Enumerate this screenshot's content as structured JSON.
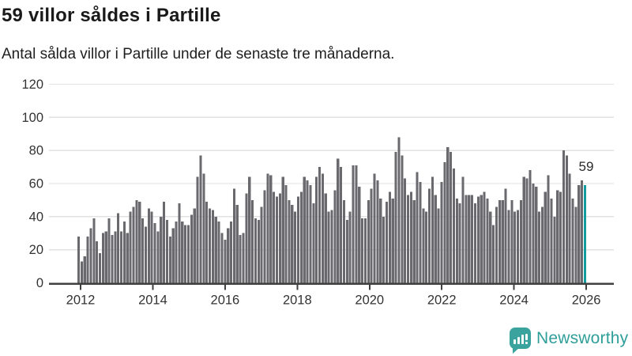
{
  "header": {
    "title": "59 villor såldes i Partille",
    "subtitle": "Antal sålda villor i Partille under de senaste tre månaderna."
  },
  "chart_data": {
    "type": "bar",
    "title": "59 villor såldes i Partille",
    "subtitle": "Antal sålda villor i Partille under de senaste tre månaderna.",
    "frequency": "monthly",
    "x_start": "2012-01",
    "x_end": "2025-11",
    "x_tick_years": [
      2012,
      2014,
      2016,
      2018,
      2020,
      2022,
      2024,
      2026
    ],
    "y_ticks": [
      0,
      20,
      40,
      60,
      80,
      100,
      120
    ],
    "ylim": [
      0,
      120
    ],
    "grid": true,
    "values": [
      28,
      13,
      16,
      28,
      33,
      39,
      25,
      18,
      30,
      31,
      39,
      29,
      31,
      42,
      31,
      37,
      30,
      43,
      46,
      50,
      49,
      39,
      34,
      45,
      43,
      36,
      31,
      40,
      49,
      38,
      28,
      33,
      37,
      48,
      37,
      35,
      35,
      41,
      45,
      64,
      77,
      66,
      49,
      45,
      44,
      40,
      37,
      30,
      26,
      33,
      37,
      57,
      47,
      29,
      30,
      54,
      64,
      50,
      39,
      38,
      46,
      56,
      66,
      65,
      55,
      52,
      54,
      64,
      59,
      50,
      47,
      43,
      52,
      55,
      64,
      62,
      59,
      48,
      64,
      70,
      66,
      54,
      43,
      44,
      56,
      75,
      70,
      50,
      38,
      43,
      71,
      71,
      58,
      39,
      39,
      50,
      57,
      66,
      62,
      51,
      40,
      49,
      55,
      51,
      79,
      88,
      77,
      63,
      53,
      55,
      50,
      67,
      61,
      45,
      43,
      57,
      64,
      53,
      45,
      61,
      73,
      82,
      79,
      69,
      51,
      48,
      64,
      53,
      53,
      53,
      48,
      52,
      53,
      55,
      51,
      43,
      35,
      46,
      50,
      50,
      57,
      44,
      50,
      43,
      44,
      50,
      64,
      63,
      68,
      60,
      58,
      43,
      46,
      55,
      65,
      51,
      40,
      56,
      55,
      80,
      77,
      66,
      51,
      46,
      59,
      62,
      59
    ],
    "highlight_index": 166,
    "highlight_value": 59,
    "highlight_label": "59",
    "bar_color": "#6a6a6e",
    "highlight_color": "#129c9e",
    "grid_color": "#e2e2e2",
    "axis_color": "#404040",
    "tick_label_color": "#333333",
    "legend_position": "none"
  },
  "annotation": {
    "last_value": "59"
  },
  "footer": {
    "brand": "Newsworthy",
    "logo_icon": "bar-chart-speech-bubble",
    "brand_color": "#2f9e99"
  }
}
